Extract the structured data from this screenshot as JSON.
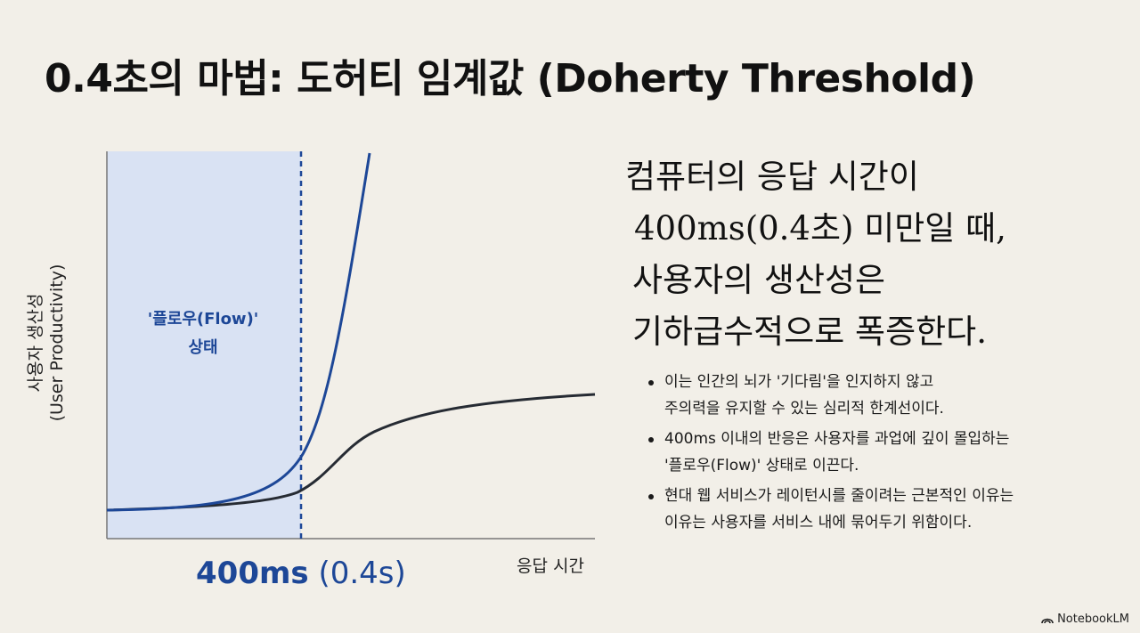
{
  "title": "0.4초의 마법: 도허티 임계값 (Doherty Threshold)",
  "chart": {
    "y_axis_label_line1": "사용자 생산성",
    "y_axis_label_line2": "(User Productivity)",
    "x_axis_label": "응답 시간",
    "flow_zone_label_line1": "'플로우(Flow)'",
    "flow_zone_label_line2": "상태",
    "threshold_label_bold": "400ms",
    "threshold_label_light": "(0.4s)",
    "colors": {
      "flow_zone": "#d9e2f3",
      "blue_curve": "#1d4797",
      "dark_curve": "#262b33",
      "threshold_line": "#1d4797"
    }
  },
  "chart_data": {
    "type": "line",
    "title": "",
    "xlabel": "응답 시간",
    "ylabel": "사용자 생산성 (User Productivity)",
    "threshold": {
      "x_label": "400ms (0.4s)",
      "style": "dashed vertical"
    },
    "shaded_region": {
      "label": "'플로우(Flow)' 상태",
      "range": "below 400ms"
    },
    "series": [
      {
        "name": "",
        "role": "exponential rise",
        "shape": "exponential"
      },
      {
        "name": "",
        "role": "saturating curve",
        "shape": "sigmoid"
      }
    ]
  },
  "headline": {
    "line1": "컴퓨터의 응답 시간이",
    "line2": "400ms(0.4초) 미만일 때,",
    "line3": "사용자의 생산성은",
    "line4": "기하급수적으로 폭증한다."
  },
  "bullets": [
    {
      "line1": "이는 인간의 뇌가 '기다림'을 인지하지 않고",
      "line2": "주의력을 유지할 수 있는 심리적 한계선이다."
    },
    {
      "line1": "400ms 이내의 반응은 사용자를 과업에 깊이 몰입하는",
      "line2": "'플로우(Flow)' 상태로 이끈다."
    },
    {
      "line1": "현대 웹 서비스가 레이턴시를 줄이려는 근본적인 이유는",
      "line2": "이유는 사용자를 서비스 내에 묶어두기 위함이다."
    }
  ],
  "brand": {
    "name": "NotebookLM",
    "icon": "notebooklm-logo-icon"
  }
}
